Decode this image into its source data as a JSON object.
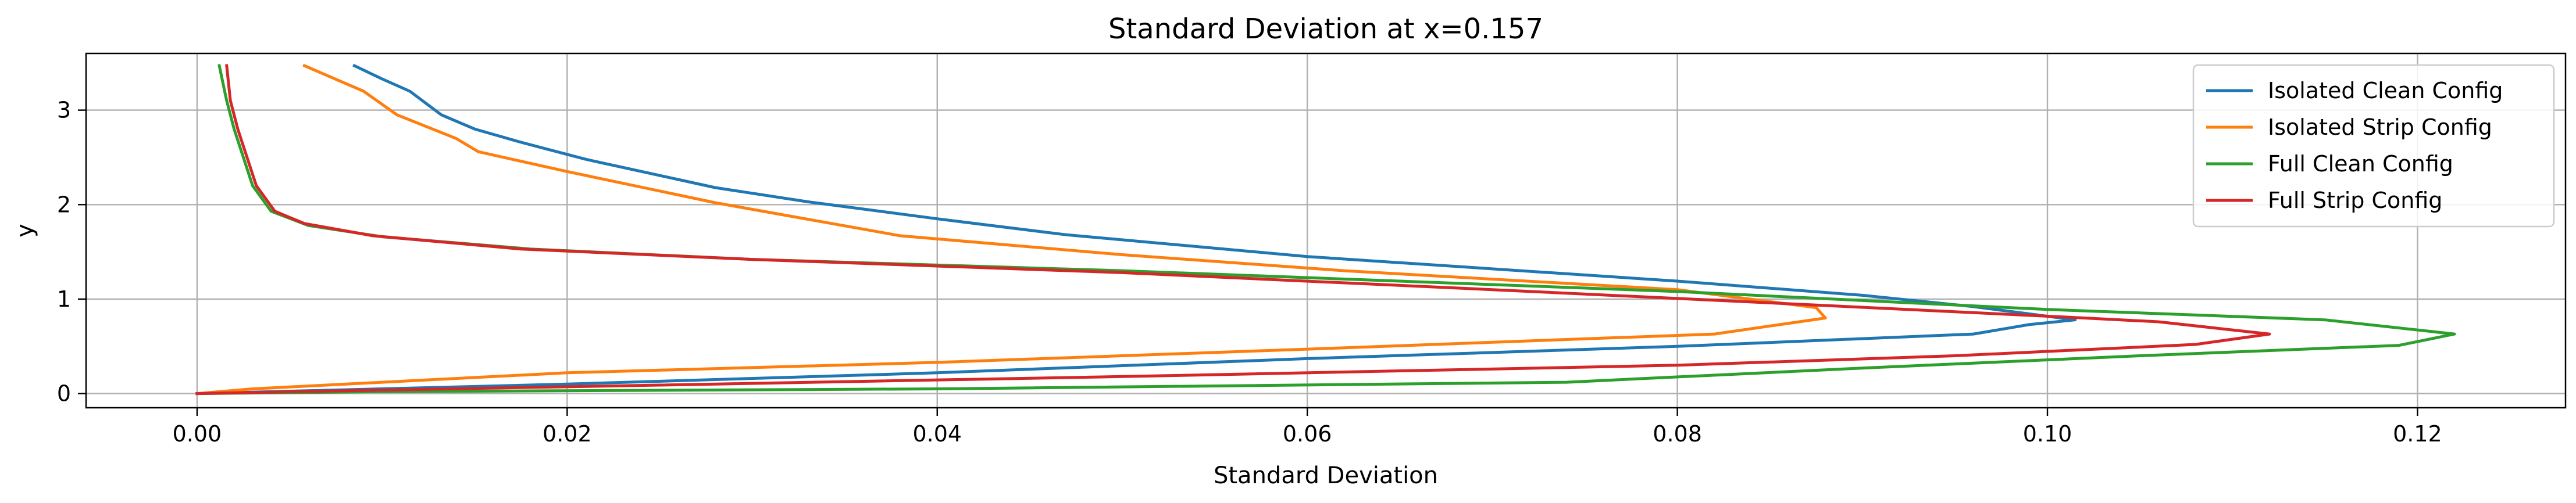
{
  "chart_data": {
    "type": "line",
    "title": "Standard Deviation at x=0.157",
    "xlabel": "Standard Deviation",
    "ylabel": "y",
    "xlim": [
      -0.006,
      0.128
    ],
    "ylim": [
      -0.15,
      3.6
    ],
    "x_ticks": [
      0.0,
      0.02,
      0.04,
      0.06,
      0.08,
      0.1,
      0.12
    ],
    "x_tick_labels": [
      "0.00",
      "0.02",
      "0.04",
      "0.06",
      "0.08",
      "0.10",
      "0.12"
    ],
    "y_ticks": [
      0,
      1,
      2,
      3
    ],
    "y_tick_labels": [
      "0",
      "1",
      "2",
      "3"
    ],
    "grid": true,
    "legend_position": "top-right",
    "series": [
      {
        "name": "Isolated Clean Config",
        "color": "#1f77b4",
        "points": [
          [
            0.0085,
            3.47
          ],
          [
            0.01,
            3.33
          ],
          [
            0.0115,
            3.2
          ],
          [
            0.0132,
            2.95
          ],
          [
            0.015,
            2.8
          ],
          [
            0.0175,
            2.66
          ],
          [
            0.021,
            2.48
          ],
          [
            0.028,
            2.18
          ],
          [
            0.033,
            2.03
          ],
          [
            0.04,
            1.85
          ],
          [
            0.047,
            1.68
          ],
          [
            0.06,
            1.45
          ],
          [
            0.08,
            1.19
          ],
          [
            0.09,
            1.04
          ],
          [
            0.096,
            0.92
          ],
          [
            0.1015,
            0.78
          ],
          [
            0.099,
            0.73
          ],
          [
            0.096,
            0.63
          ],
          [
            0.08,
            0.5
          ],
          [
            0.06,
            0.37
          ],
          [
            0.04,
            0.22
          ],
          [
            0.02,
            0.1
          ],
          [
            0.008,
            0.04
          ],
          [
            0.0,
            0.0
          ]
        ]
      },
      {
        "name": "Isolated Strip Config",
        "color": "#ff7f0e",
        "points": [
          [
            0.0058,
            3.47
          ],
          [
            0.009,
            3.2
          ],
          [
            0.0108,
            2.95
          ],
          [
            0.014,
            2.7
          ],
          [
            0.0152,
            2.56
          ],
          [
            0.02,
            2.35
          ],
          [
            0.028,
            2.02
          ],
          [
            0.038,
            1.67
          ],
          [
            0.05,
            1.47
          ],
          [
            0.062,
            1.3
          ],
          [
            0.08,
            1.1
          ],
          [
            0.0875,
            0.91
          ],
          [
            0.088,
            0.8
          ],
          [
            0.082,
            0.63
          ],
          [
            0.06,
            0.47
          ],
          [
            0.04,
            0.33
          ],
          [
            0.02,
            0.22
          ],
          [
            0.01,
            0.12
          ],
          [
            0.003,
            0.05
          ],
          [
            0.0,
            0.0
          ]
        ]
      },
      {
        "name": "Full Clean Config",
        "color": "#2ca02c",
        "points": [
          [
            0.0012,
            3.47
          ],
          [
            0.0016,
            3.1
          ],
          [
            0.002,
            2.8
          ],
          [
            0.0025,
            2.5
          ],
          [
            0.003,
            2.2
          ],
          [
            0.004,
            1.93
          ],
          [
            0.006,
            1.78
          ],
          [
            0.01,
            1.66
          ],
          [
            0.018,
            1.53
          ],
          [
            0.03,
            1.42
          ],
          [
            0.05,
            1.3
          ],
          [
            0.08,
            1.08
          ],
          [
            0.1,
            0.89
          ],
          [
            0.115,
            0.78
          ],
          [
            0.122,
            0.63
          ],
          [
            0.119,
            0.51
          ],
          [
            0.105,
            0.4
          ],
          [
            0.09,
            0.27
          ],
          [
            0.074,
            0.12
          ],
          [
            0.04,
            0.05
          ],
          [
            0.01,
            0.02
          ],
          [
            0.0,
            0.0
          ]
        ]
      },
      {
        "name": "Full Strip Config",
        "color": "#d62728",
        "points": [
          [
            0.0016,
            3.47
          ],
          [
            0.0018,
            3.1
          ],
          [
            0.0022,
            2.8
          ],
          [
            0.0027,
            2.5
          ],
          [
            0.0032,
            2.2
          ],
          [
            0.0042,
            1.93
          ],
          [
            0.0058,
            1.8
          ],
          [
            0.0095,
            1.67
          ],
          [
            0.0175,
            1.53
          ],
          [
            0.03,
            1.42
          ],
          [
            0.05,
            1.28
          ],
          [
            0.07,
            1.1
          ],
          [
            0.085,
            0.96
          ],
          [
            0.102,
            0.8
          ],
          [
            0.106,
            0.76
          ],
          [
            0.112,
            0.63
          ],
          [
            0.108,
            0.52
          ],
          [
            0.095,
            0.4
          ],
          [
            0.08,
            0.3
          ],
          [
            0.05,
            0.18
          ],
          [
            0.025,
            0.09
          ],
          [
            0.008,
            0.03
          ],
          [
            0.0,
            0.0
          ]
        ]
      }
    ]
  }
}
